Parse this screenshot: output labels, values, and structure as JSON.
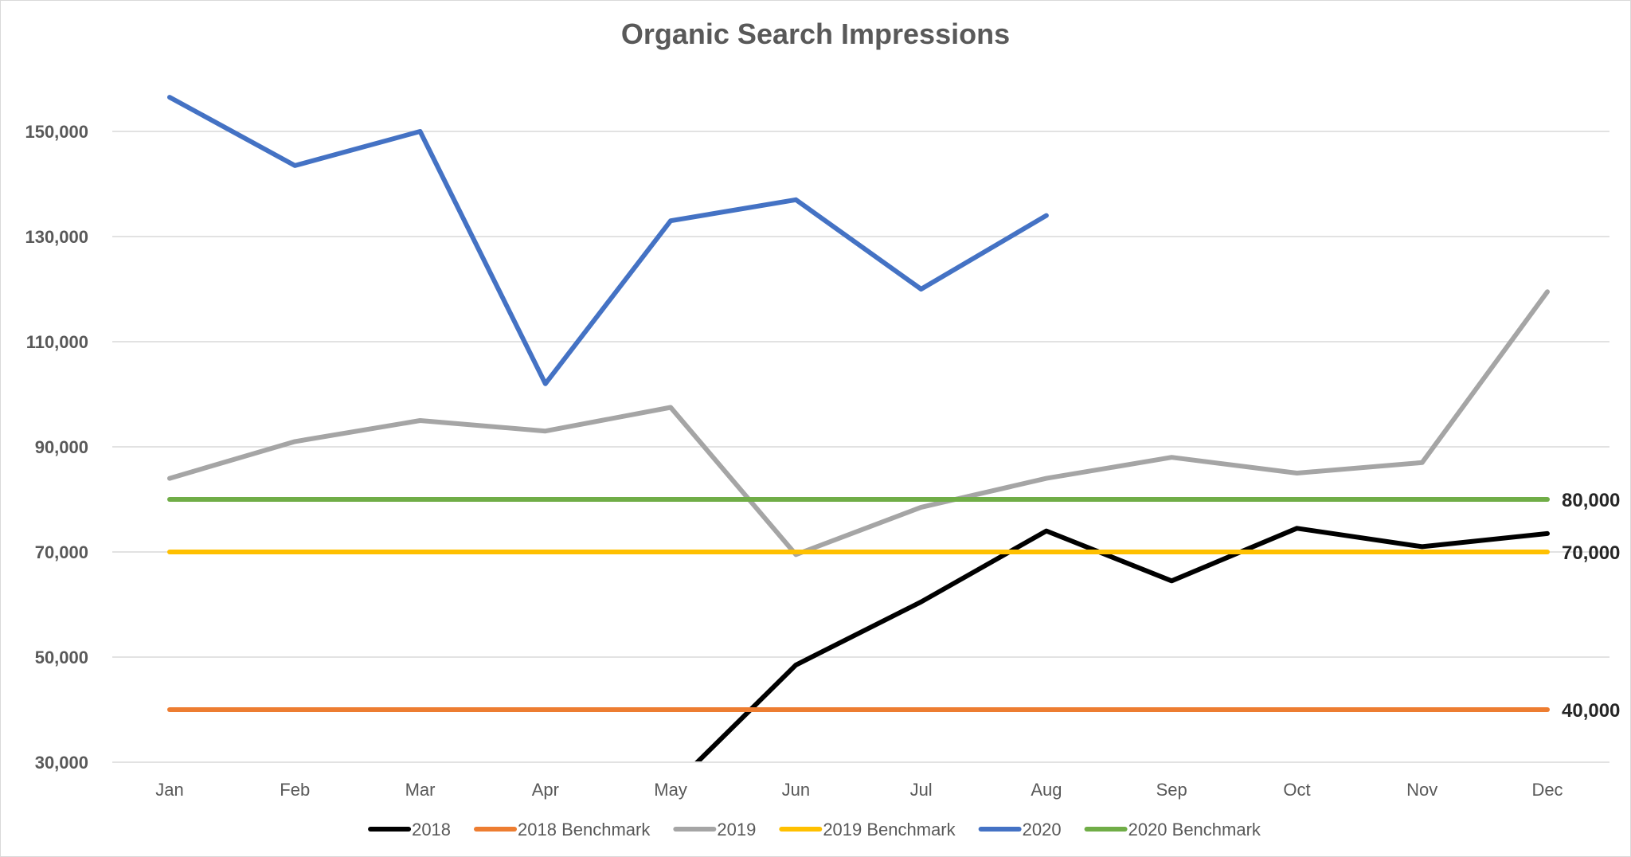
{
  "chart_data": {
    "type": "line",
    "title": "Organic Search Impressions",
    "xlabel": "",
    "ylabel": "",
    "categories": [
      "Jan",
      "Feb",
      "Mar",
      "Apr",
      "May",
      "Jun",
      "Jul",
      "Aug",
      "Sep",
      "Oct",
      "Nov",
      "Dec"
    ],
    "ylim": [
      30000,
      155000
    ],
    "yticks": [
      30000,
      50000,
      70000,
      90000,
      110000,
      130000,
      150000
    ],
    "y_tick_labels": [
      "30,000",
      "50,000",
      "70,000",
      "90,000",
      "110,000",
      "130,000",
      "150,000"
    ],
    "grid": true,
    "legend_position": "bottom",
    "series": [
      {
        "name": "2018",
        "color": "#000000",
        "values": [
          null,
          null,
          null,
          null,
          25000,
          48500,
          60500,
          74000,
          64500,
          74500,
          71000,
          73500
        ]
      },
      {
        "name": "2018 Benchmark",
        "color": "#ED7D31",
        "values": [
          40000,
          40000,
          40000,
          40000,
          40000,
          40000,
          40000,
          40000,
          40000,
          40000,
          40000,
          40000
        ]
      },
      {
        "name": "2019",
        "color": "#A5A5A5",
        "values": [
          84000,
          91000,
          95000,
          93000,
          97500,
          69500,
          78500,
          84000,
          88000,
          85000,
          87000,
          119500
        ]
      },
      {
        "name": "2019 Benchmark",
        "color": "#FFC000",
        "values": [
          70000,
          70000,
          70000,
          70000,
          70000,
          70000,
          70000,
          70000,
          70000,
          70000,
          70000,
          70000
        ]
      },
      {
        "name": "2020",
        "color": "#4472C4",
        "values": [
          156500,
          143500,
          150000,
          102000,
          133000,
          137000,
          120000,
          134000,
          null,
          null,
          null,
          null
        ]
      },
      {
        "name": "2020 Benchmark",
        "color": "#70AD47",
        "values": [
          80000,
          80000,
          80000,
          80000,
          80000,
          80000,
          80000,
          80000,
          80000,
          80000,
          80000,
          80000
        ]
      }
    ],
    "annotations": [
      {
        "series": "2020 Benchmark",
        "label": "80,000"
      },
      {
        "series": "2019 Benchmark",
        "label": "70,000"
      },
      {
        "series": "2018 Benchmark",
        "label": "40,000"
      }
    ]
  }
}
